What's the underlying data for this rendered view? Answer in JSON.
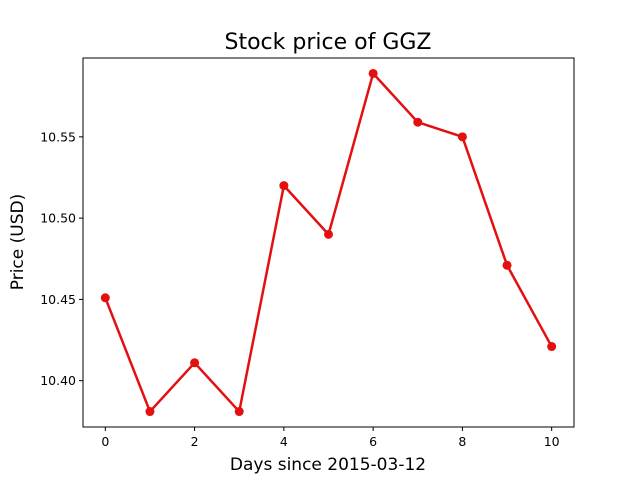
{
  "chart_data": {
    "type": "line",
    "title": "Stock price of GGZ",
    "xlabel": "Days since 2015-03-12",
    "ylabel": "Price (USD)",
    "x": [
      0,
      1,
      2,
      3,
      4,
      5,
      6,
      7,
      8,
      9,
      10
    ],
    "series": [
      {
        "values": [
          10.451,
          10.381,
          10.411,
          10.381,
          10.52,
          10.49,
          10.589,
          10.559,
          10.55,
          10.471,
          10.421
        ],
        "color": "#e41010"
      }
    ],
    "xlim": [
      -0.5,
      10.5
    ],
    "ylim": [
      10.3715,
      10.5985
    ],
    "xticks": [
      0,
      2,
      4,
      6,
      8,
      10
    ],
    "yticks": [
      10.4,
      10.45,
      10.5,
      10.55
    ],
    "xtick_labels": [
      "0",
      "2",
      "4",
      "6",
      "8",
      "10"
    ],
    "ytick_labels": [
      "10.40",
      "10.45",
      "10.50",
      "10.55"
    ],
    "grid": false,
    "legend": "none"
  }
}
